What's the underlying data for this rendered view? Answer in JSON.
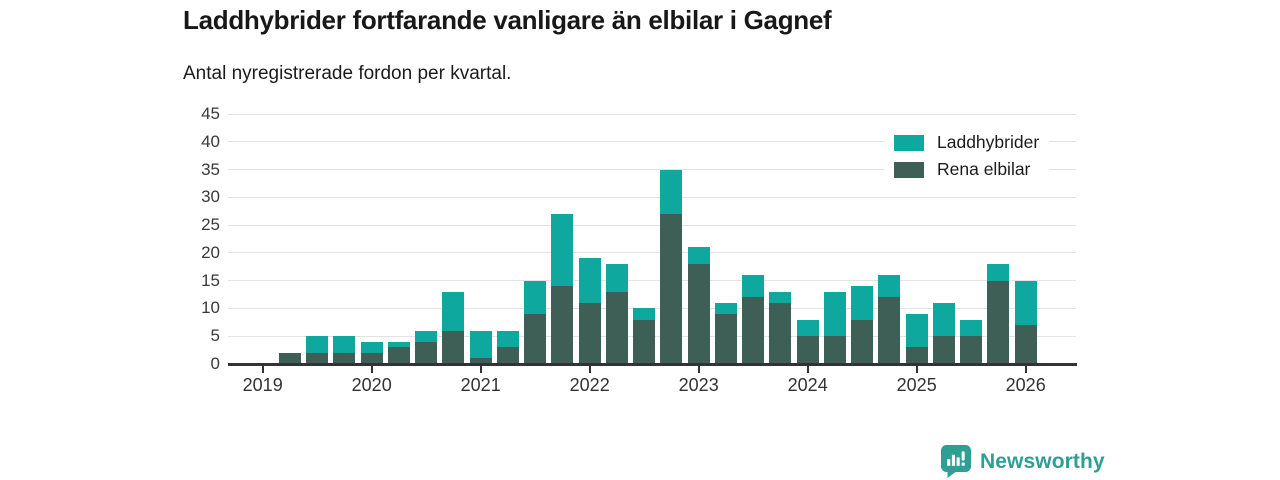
{
  "header": {
    "title": "Laddhybrider fortfarande vanligare än elbilar i Gagnef",
    "subtitle": "Antal nyregistrerade fordon per kvartal."
  },
  "chart_data": {
    "type": "bar",
    "stacked": true,
    "title": "Laddhybrider fortfarande vanligare än elbilar i Gagnef",
    "subtitle": "Antal nyregistrerade fordon per kvartal.",
    "xlabel": "",
    "ylabel": "",
    "ylim": [
      0,
      45
    ],
    "y_ticks": [
      0,
      5,
      10,
      15,
      20,
      25,
      30,
      35,
      40,
      45
    ],
    "grid": true,
    "legend_position": "top-right",
    "categories": [
      "2019Q1",
      "2019Q2",
      "2019Q3",
      "2019Q4",
      "2020Q1",
      "2020Q2",
      "2020Q3",
      "2020Q4",
      "2021Q1",
      "2021Q2",
      "2021Q3",
      "2021Q4",
      "2022Q1",
      "2022Q2",
      "2022Q3",
      "2022Q4",
      "2023Q1",
      "2023Q2",
      "2023Q3",
      "2023Q4",
      "2024Q1",
      "2024Q2",
      "2024Q3",
      "2024Q4",
      "2025Q1",
      "2025Q2",
      "2025Q3",
      "2025Q4",
      "2026Q1"
    ],
    "x_tick_labels": [
      "2019",
      "2020",
      "2021",
      "2022",
      "2023",
      "2024",
      "2025",
      "2026"
    ],
    "series": [
      {
        "name": "Laddhybrider",
        "color": "#0ea89e",
        "values": [
          0,
          0,
          3,
          3,
          2,
          1,
          2,
          7,
          5,
          3,
          6,
          13,
          8,
          5,
          2,
          8,
          3,
          2,
          4,
          2,
          3,
          8,
          6,
          4,
          6,
          6,
          3,
          3,
          8
        ]
      },
      {
        "name": "Rena elbilar",
        "color": "#3d5f55",
        "values": [
          0,
          2,
          2,
          2,
          2,
          3,
          4,
          6,
          1,
          3,
          9,
          14,
          11,
          13,
          8,
          27,
          18,
          9,
          12,
          11,
          5,
          5,
          8,
          12,
          3,
          5,
          5,
          15,
          7
        ]
      }
    ]
  },
  "legend": {
    "items": [
      {
        "label": "Laddhybrider",
        "color": "#0ea89e"
      },
      {
        "label": "Rena elbilar",
        "color": "#3d5f55"
      }
    ]
  },
  "footer": {
    "brand": "Newsworthy",
    "logo_icon": "newsworthy-speech-bubble-bar-chart-icon",
    "brand_color": "#2f9e93"
  },
  "colors": {
    "laddhybrider": "#0ea89e",
    "rena_elbilar": "#3d5f55",
    "gridline": "#e3e3e3",
    "axis": "#333333",
    "brand": "#2f9e93"
  }
}
